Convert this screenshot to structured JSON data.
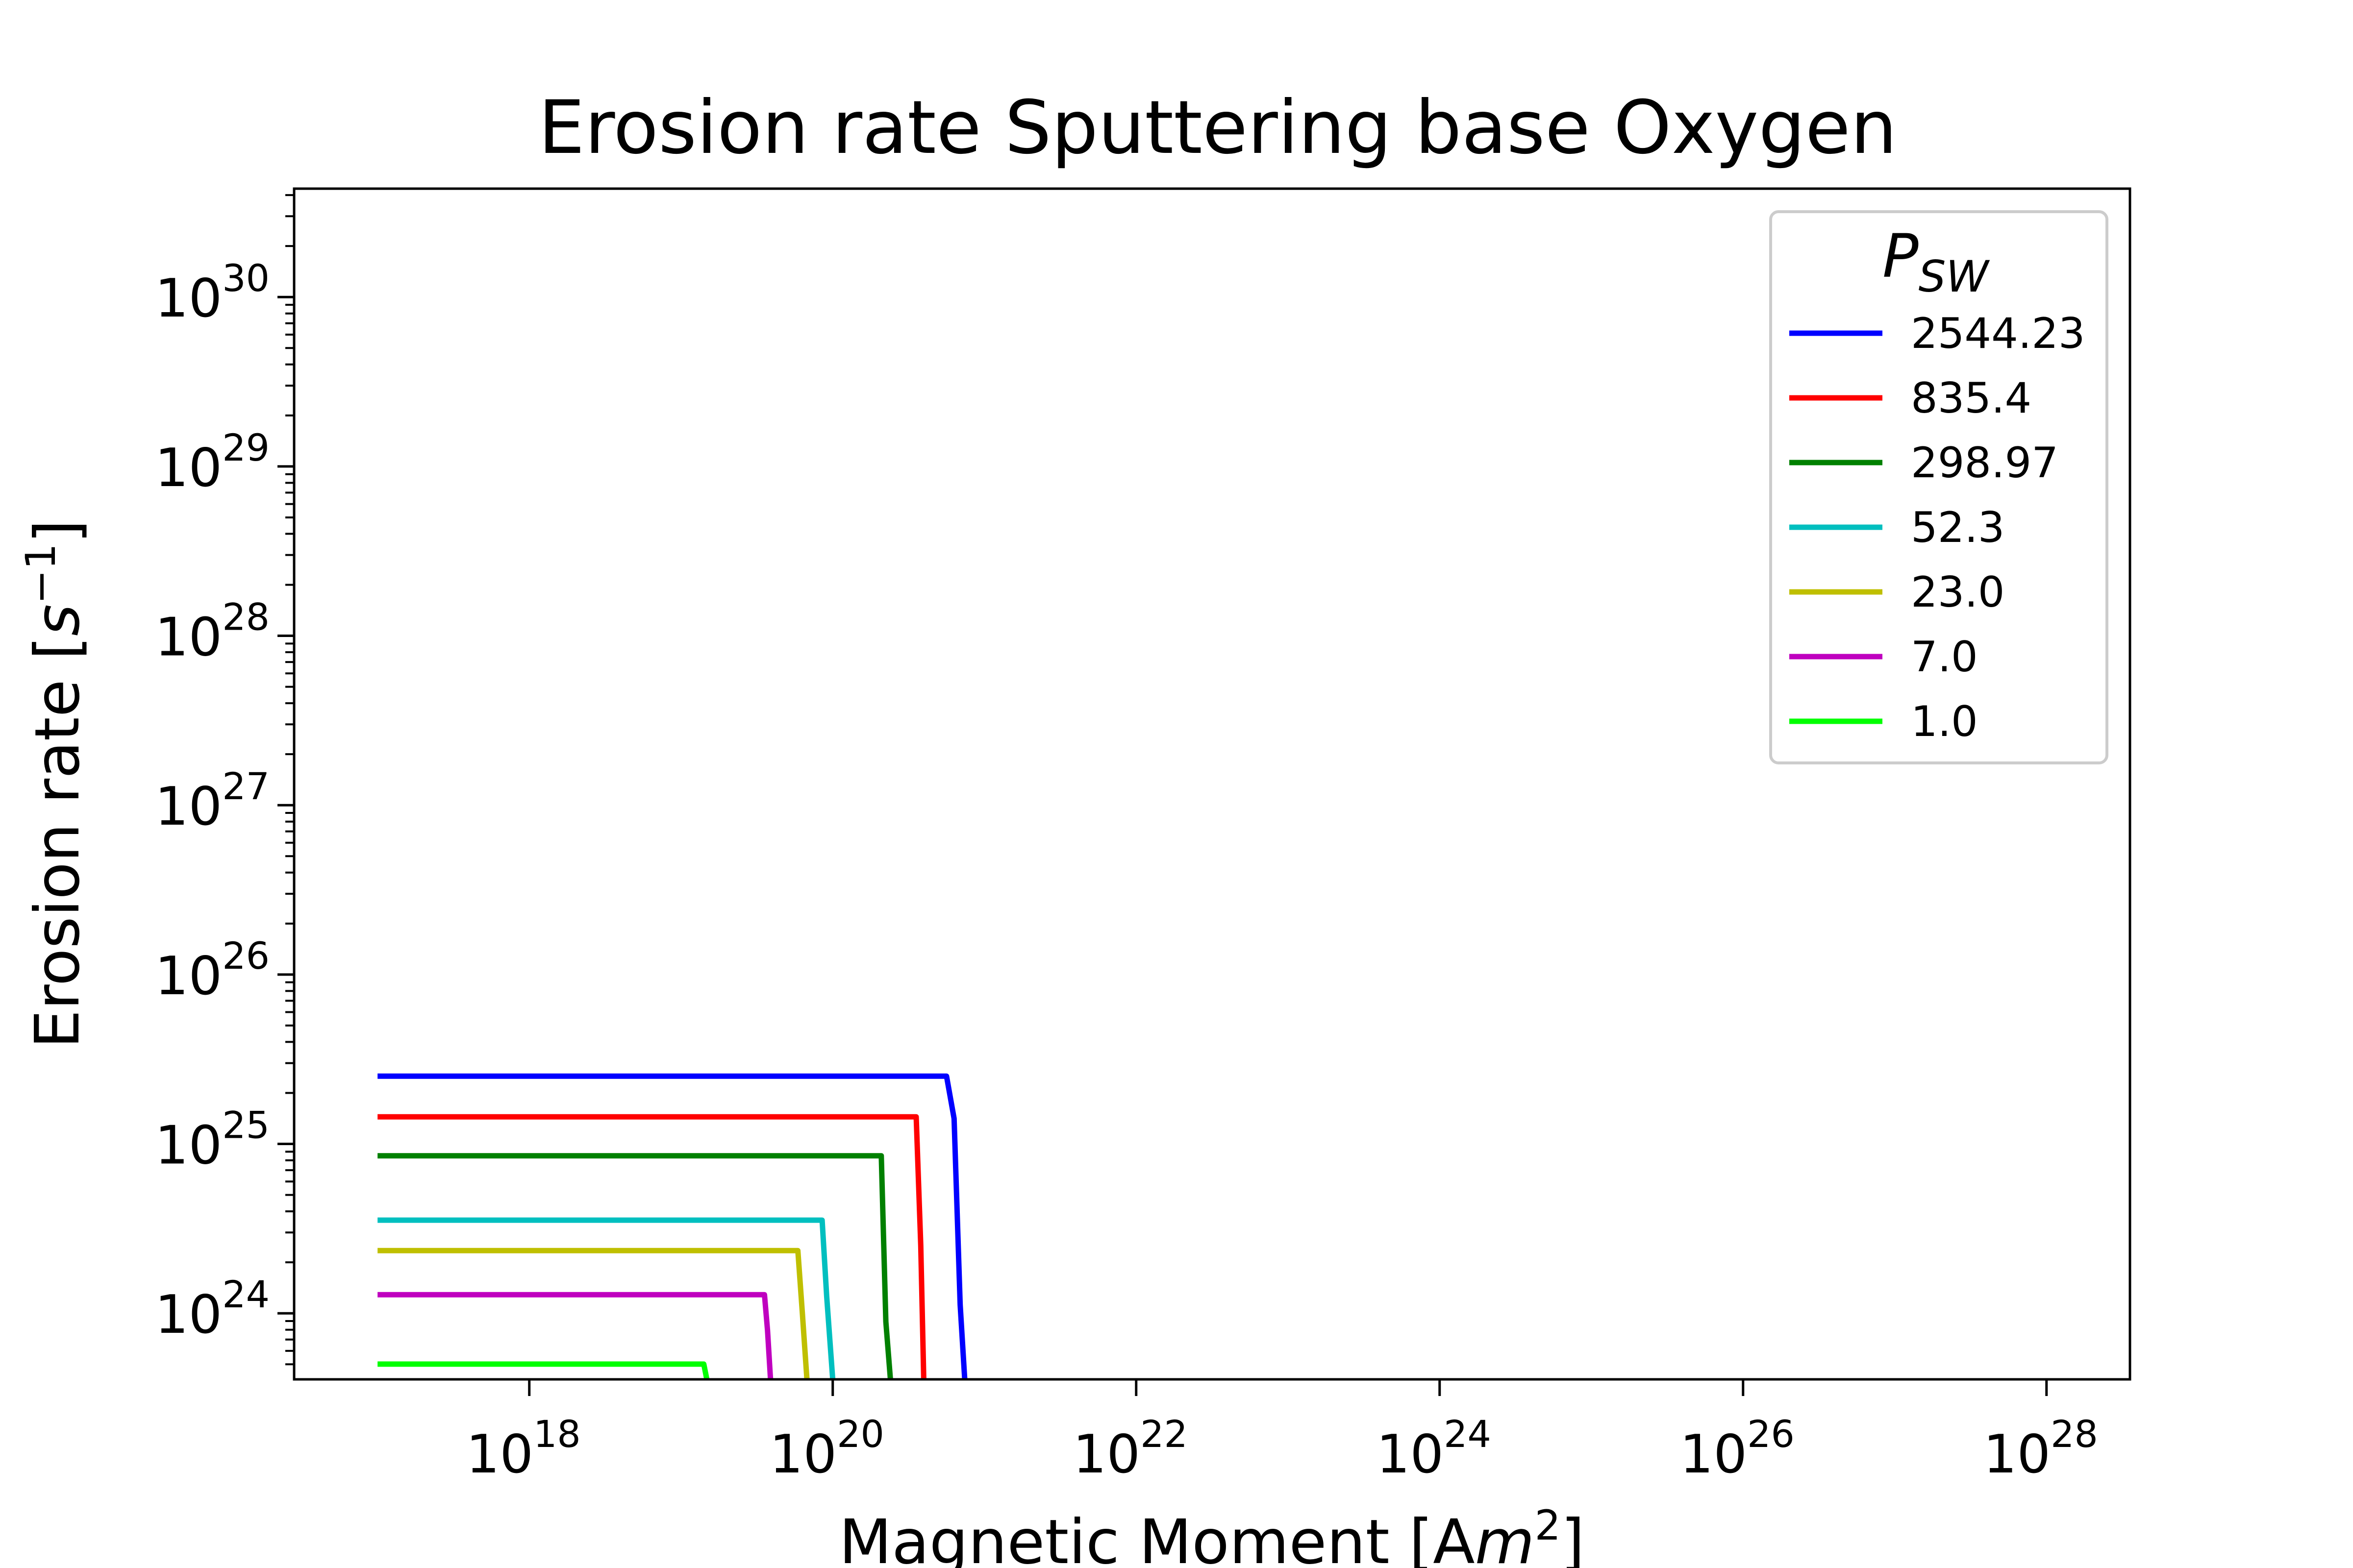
{
  "chart_data": {
    "type": "line",
    "title": "Erosion rate Sputtering base Oxygen",
    "xlabel": {
      "text": "Magnetic Moment [A",
      "math": "m",
      "sup": "2",
      "close": "]"
    },
    "ylabel": {
      "text": "Erosion rate [",
      "math": "s",
      "sup": "−1",
      "close": "]"
    },
    "xscale": "log",
    "yscale": "log",
    "xlim_exp": [
      16.45,
      28.55
    ],
    "ylim_exp": [
      23.61,
      30.64
    ],
    "x_ticks": [
      {
        "base": "10",
        "exp": "18"
      },
      {
        "base": "10",
        "exp": "20"
      },
      {
        "base": "10",
        "exp": "22"
      },
      {
        "base": "10",
        "exp": "24"
      },
      {
        "base": "10",
        "exp": "26"
      },
      {
        "base": "10",
        "exp": "28"
      }
    ],
    "y_ticks": [
      {
        "base": "10",
        "exp": "24"
      },
      {
        "base": "10",
        "exp": "25"
      },
      {
        "base": "10",
        "exp": "26"
      },
      {
        "base": "10",
        "exp": "27"
      },
      {
        "base": "10",
        "exp": "28"
      },
      {
        "base": "10",
        "exp": "29"
      },
      {
        "base": "10",
        "exp": "30"
      }
    ],
    "grid": false,
    "legend": {
      "title_main": "P",
      "title_sub": "SW",
      "position": "upper right"
    },
    "series": [
      {
        "name": "2544.23",
        "color": "#0000ff",
        "points_exp": [
          [
            17.0,
            25.4
          ],
          [
            20.75,
            25.4
          ],
          [
            20.8,
            25.15
          ],
          [
            20.84,
            24.05
          ],
          [
            20.87,
            23.61
          ]
        ]
      },
      {
        "name": "835.4",
        "color": "#ff0000",
        "points_exp": [
          [
            17.0,
            25.16
          ],
          [
            20.55,
            25.16
          ],
          [
            20.58,
            24.4
          ],
          [
            20.6,
            23.61
          ]
        ]
      },
      {
        "name": "298.97",
        "color": "#008000",
        "points_exp": [
          [
            17.0,
            24.93
          ],
          [
            20.32,
            24.93
          ],
          [
            20.35,
            23.95
          ],
          [
            20.38,
            23.61
          ]
        ]
      },
      {
        "name": "52.3",
        "color": "#00bfbf",
        "points_exp": [
          [
            17.0,
            24.55
          ],
          [
            19.93,
            24.55
          ],
          [
            19.96,
            24.1
          ],
          [
            20.0,
            23.61
          ]
        ]
      },
      {
        "name": "23.0",
        "color": "#bfbf00",
        "points_exp": [
          [
            17.0,
            24.37
          ],
          [
            19.77,
            24.37
          ],
          [
            19.8,
            24.0
          ],
          [
            19.83,
            23.61
          ]
        ]
      },
      {
        "name": "7.0",
        "color": "#bf00bf",
        "points_exp": [
          [
            17.0,
            24.11
          ],
          [
            19.55,
            24.11
          ],
          [
            19.57,
            23.9
          ],
          [
            19.59,
            23.61
          ]
        ]
      },
      {
        "name": "1.0",
        "color": "#00ff00",
        "points_exp": [
          [
            17.0,
            23.7
          ],
          [
            19.15,
            23.7
          ],
          [
            19.17,
            23.61
          ]
        ]
      }
    ]
  }
}
